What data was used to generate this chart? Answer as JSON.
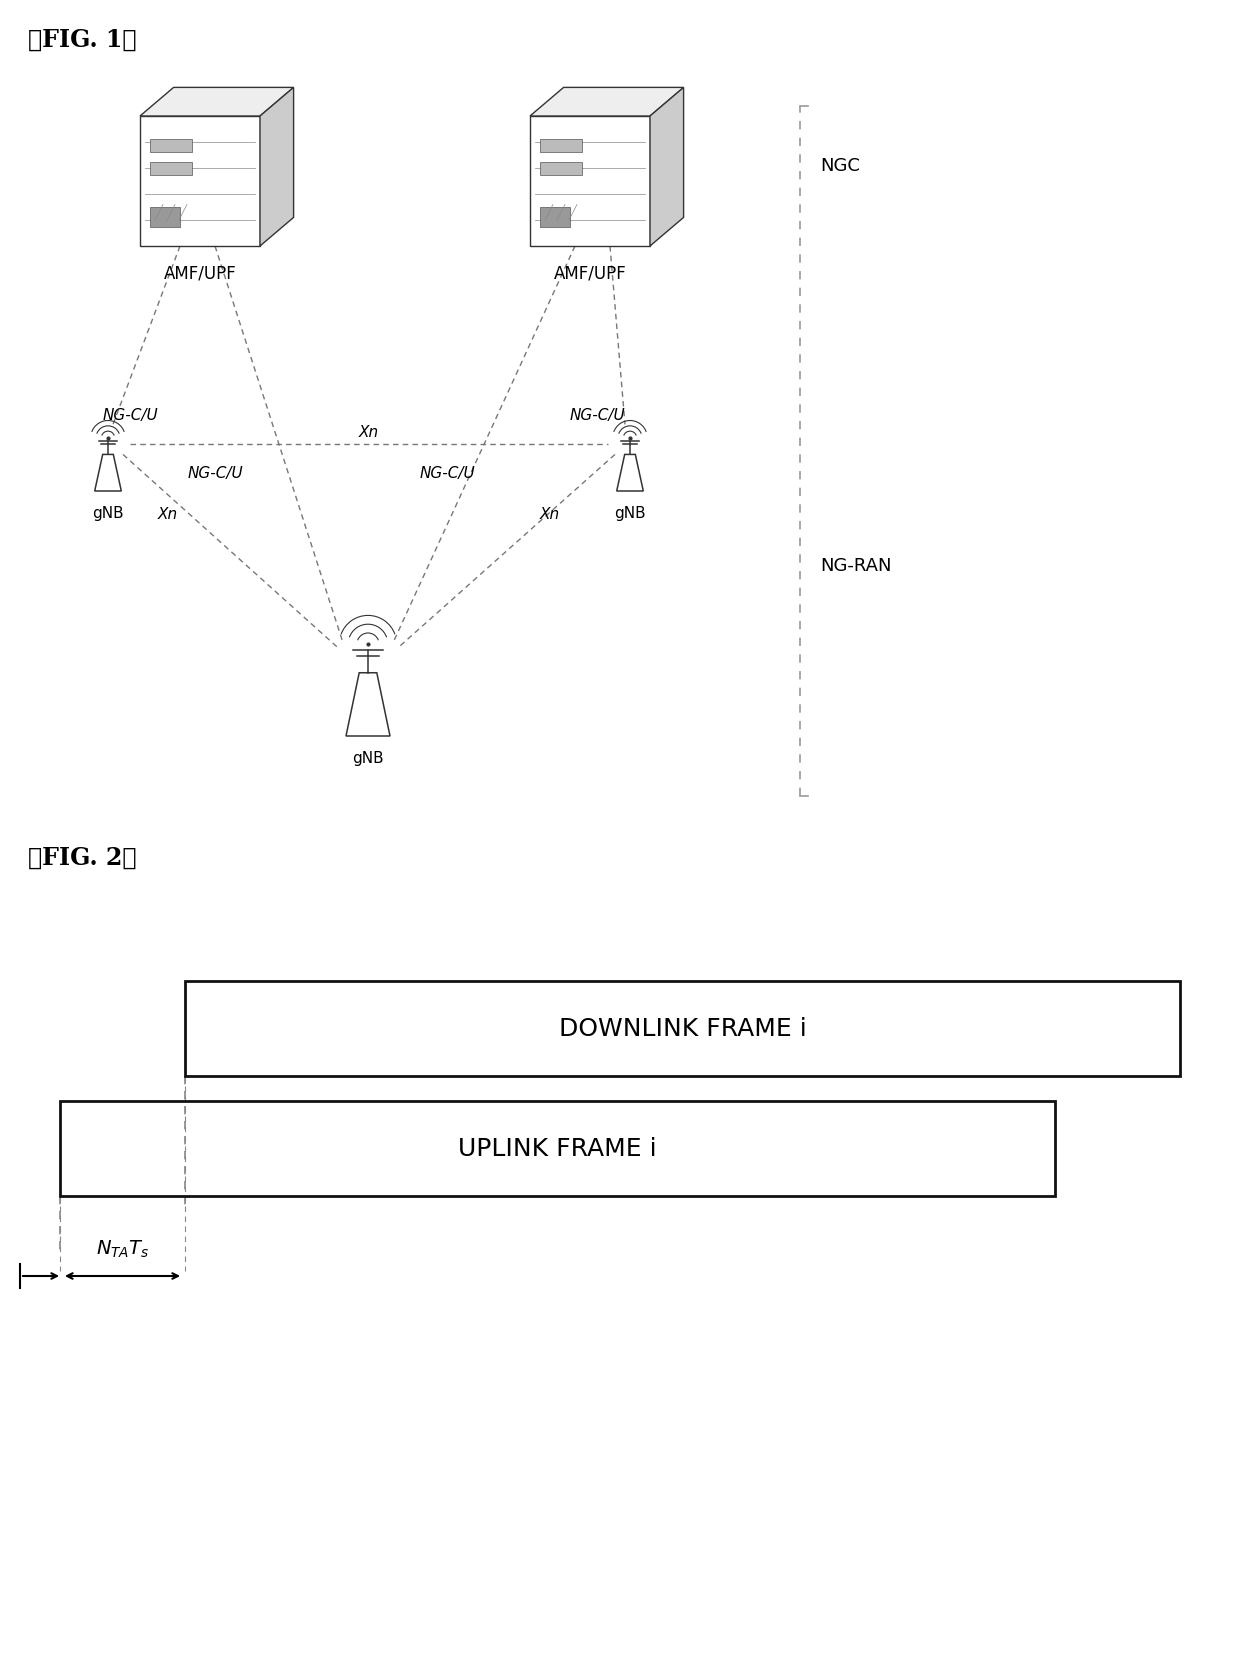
{
  "fig1_label": "』FIG. 1『",
  "fig2_label": "』FIG. 2『",
  "amf_upf_left_label": "AMF/UPF",
  "amf_upf_right_label": "AMF/UPF",
  "gnb_left_label": "gNB",
  "gnb_right_label": "gNB",
  "gnb_bottom_label": "gNB",
  "ngc_label": "NGC",
  "ng_ran_label": "NG-RAN",
  "ng_cu_labels": [
    "NG-C/U",
    "NG-C/U",
    "NG-C/U",
    "NG-C/U"
  ],
  "xn_labels": [
    "Xn",
    "Xn",
    "Xn"
  ],
  "downlink_label": "DOWNLINK FRAME i",
  "uplink_label": "UPLINK FRAME i",
  "bg_color": "#ffffff",
  "line_color": "#666666",
  "text_color": "#000000"
}
